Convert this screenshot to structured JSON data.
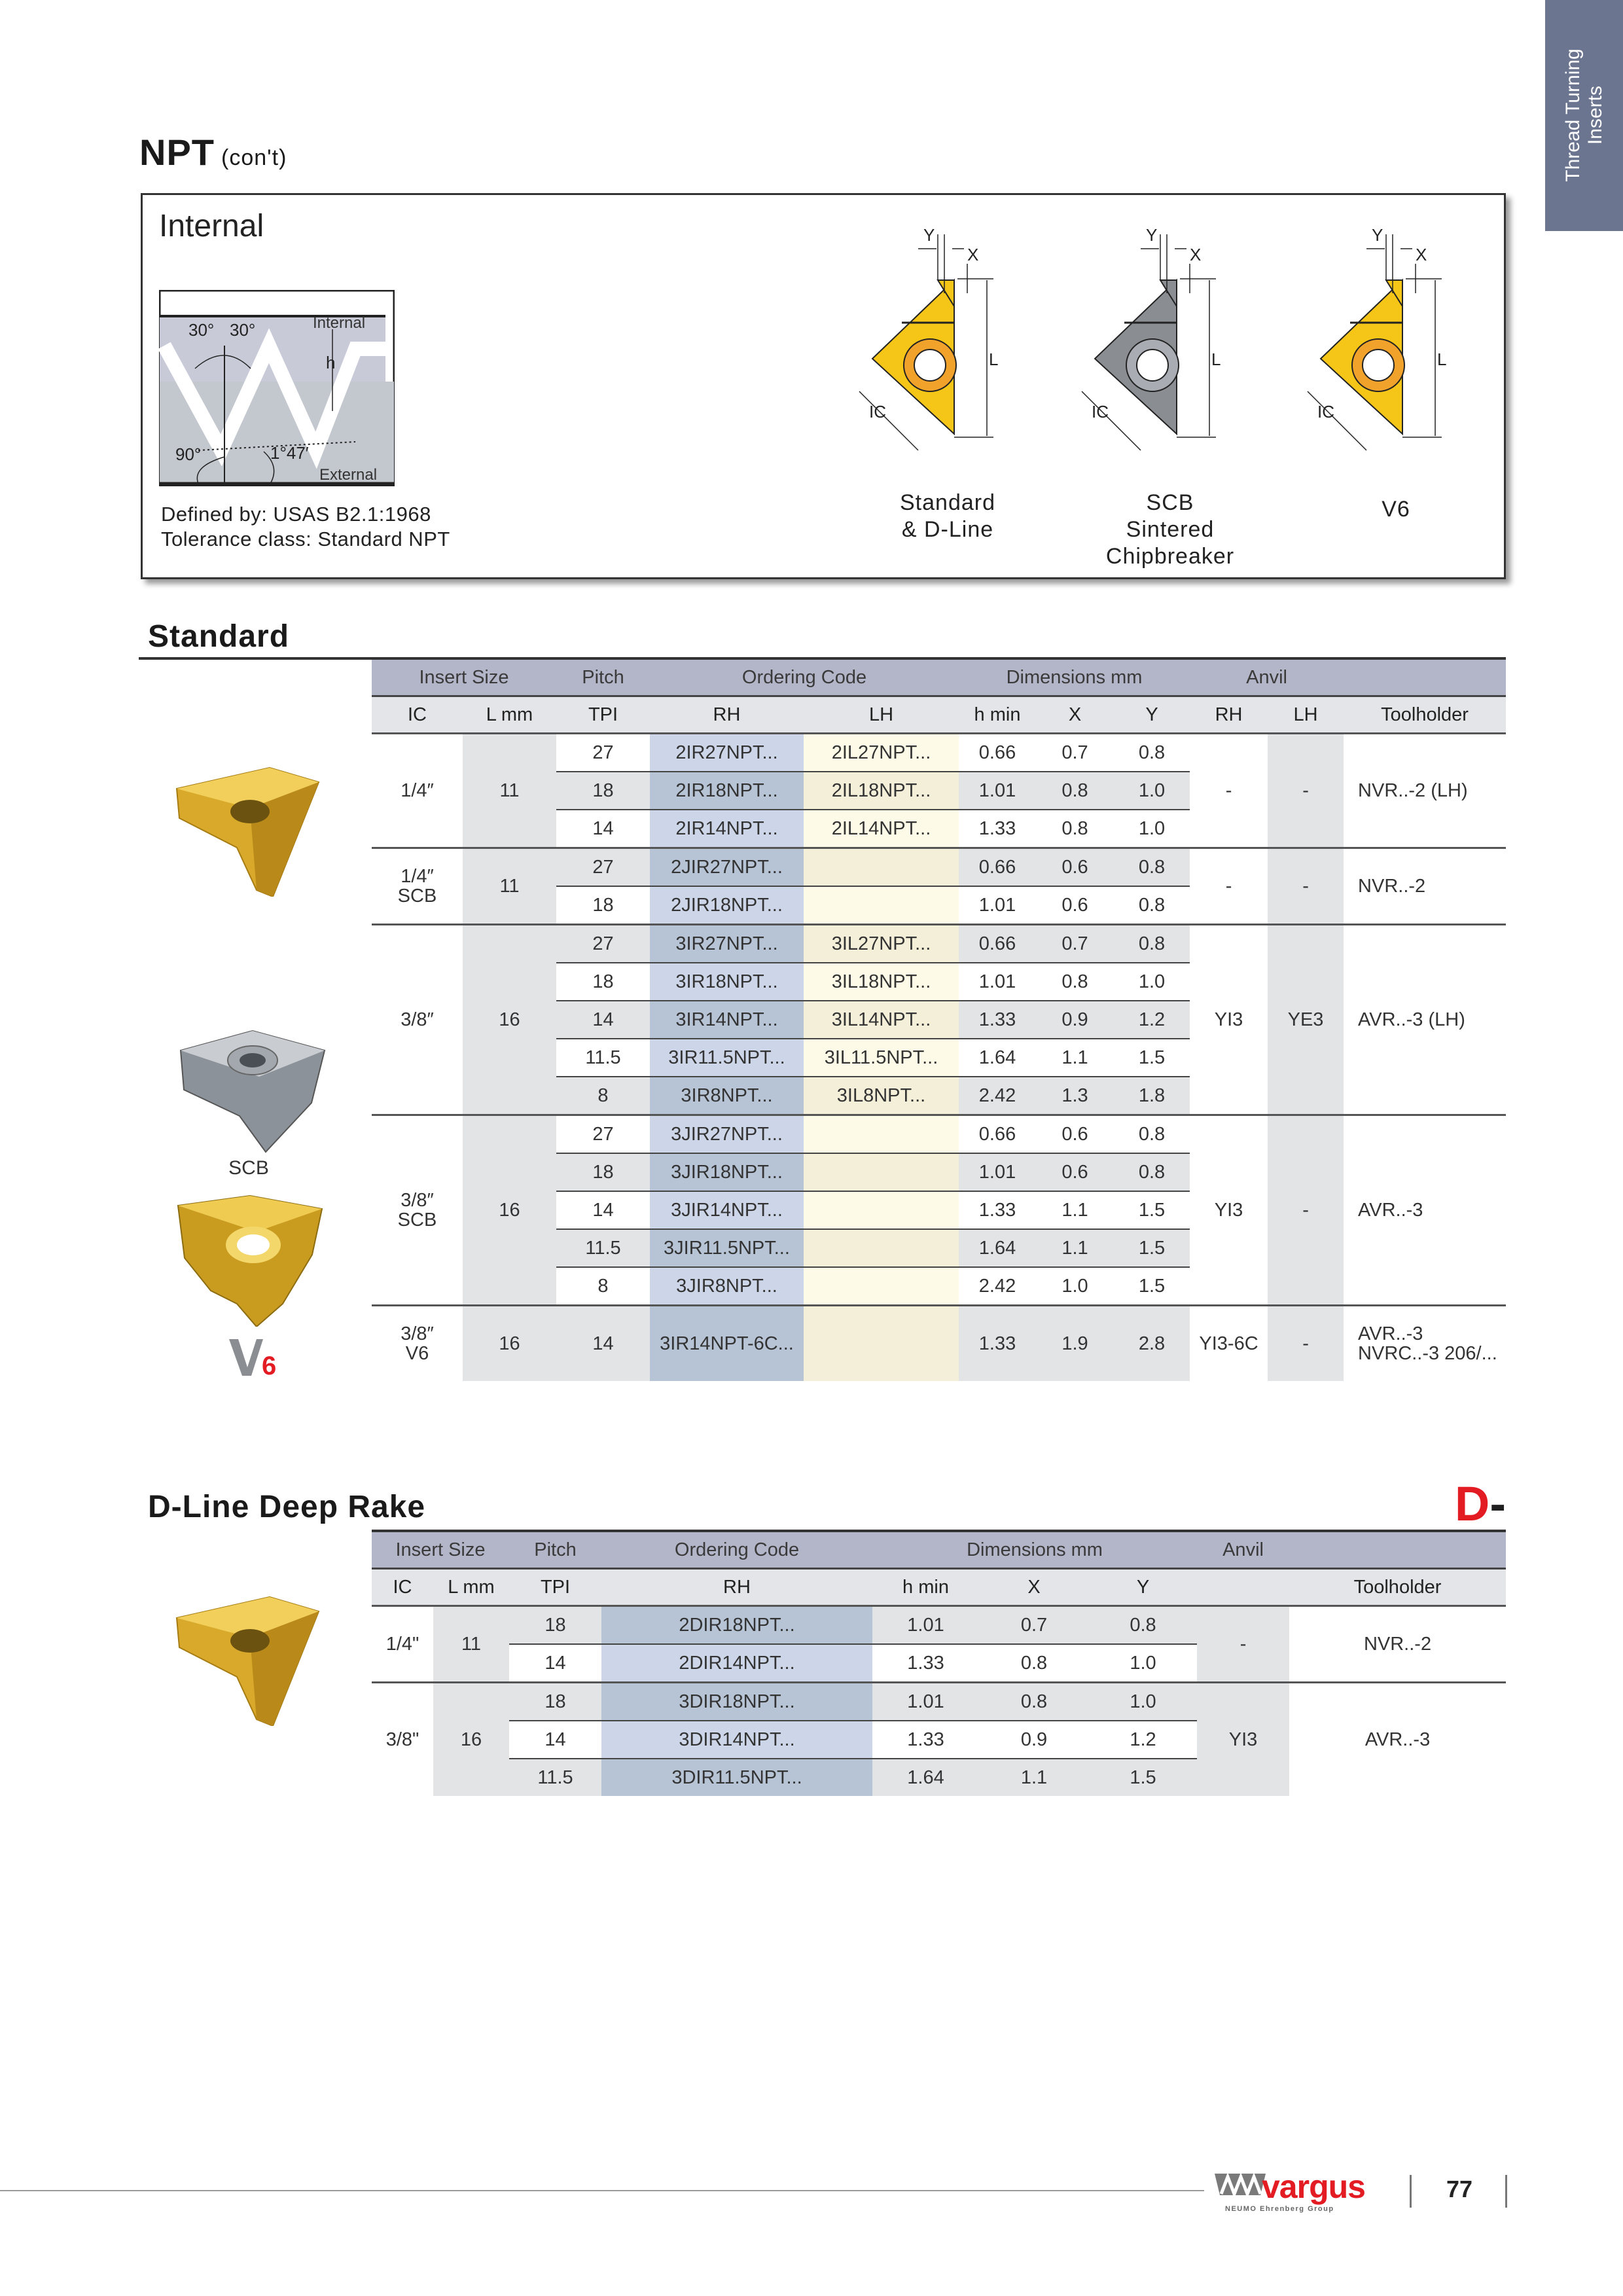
{
  "side_tab": {
    "line1": "Thread Turning",
    "line2": "Inserts",
    "color": "#6b7590"
  },
  "title": {
    "main": "NPT",
    "sub": "(con't)"
  },
  "info_box": {
    "title": "Internal",
    "thread_diagram_labels": {
      "angle_left": "30°",
      "angle_right": "30°",
      "internal": "Internal",
      "h": "h",
      "angle_90": "90°",
      "taper": "1°47′",
      "external": "External"
    },
    "defined_by": "Defined by: USAS B2.1:1968",
    "tolerance": "Tolerance class: Standard NPT",
    "inserts": [
      {
        "lines": [
          "Standard",
          "& D-Line"
        ],
        "color": "gold"
      },
      {
        "lines": [
          "SCB",
          "Sintered",
          "Chipbreaker"
        ],
        "color": "gray"
      },
      {
        "lines": [
          "V6"
        ],
        "color": "gold"
      }
    ],
    "dimension_labels": {
      "y": "Y",
      "x": "X",
      "l": "L",
      "ic": "IC"
    }
  },
  "standard": {
    "heading": "Standard",
    "group_headers": [
      "Insert Size",
      "Pitch",
      "Ordering Code",
      "Dimensions mm",
      "Anvil",
      ""
    ],
    "col_headers": [
      "IC",
      "L mm",
      "TPI",
      "RH",
      "LH",
      "h min",
      "X",
      "Y",
      "RH",
      "LH",
      "Toolholder"
    ],
    "image_labels": {
      "scb": "SCB",
      "v6_logo": "V6"
    },
    "groups": [
      {
        "ic": [
          "1/4″"
        ],
        "l": "11",
        "anvil_rh": "-",
        "anvil_lh": "-",
        "toolholder": [
          "NVR..-2 (LH)"
        ],
        "rows": [
          {
            "tpi": "27",
            "rh": "2IR27NPT...",
            "lh": "2IL27NPT...",
            "hmin": "0.66",
            "x": "0.7",
            "y": "0.8"
          },
          {
            "tpi": "18",
            "rh": "2IR18NPT...",
            "lh": "2IL18NPT...",
            "hmin": "1.01",
            "x": "0.8",
            "y": "1.0"
          },
          {
            "tpi": "14",
            "rh": "2IR14NPT...",
            "lh": "2IL14NPT...",
            "hmin": "1.33",
            "x": "0.8",
            "y": "1.0"
          }
        ]
      },
      {
        "ic": [
          "1/4″",
          "SCB"
        ],
        "l": "11",
        "anvil_rh": "-",
        "anvil_lh": "-",
        "toolholder": [
          "NVR..-2"
        ],
        "rows": [
          {
            "tpi": "27",
            "rh": "2JIR27NPT...",
            "lh": "",
            "hmin": "0.66",
            "x": "0.6",
            "y": "0.8"
          },
          {
            "tpi": "18",
            "rh": "2JIR18NPT...",
            "lh": "",
            "hmin": "1.01",
            "x": "0.6",
            "y": "0.8"
          }
        ]
      },
      {
        "ic": [
          "3/8″"
        ],
        "l": "16",
        "anvil_rh": "YI3",
        "anvil_lh": "YE3",
        "toolholder": [
          "AVR..-3 (LH)"
        ],
        "rows": [
          {
            "tpi": "27",
            "rh": "3IR27NPT...",
            "lh": "3IL27NPT...",
            "hmin": "0.66",
            "x": "0.7",
            "y": "0.8"
          },
          {
            "tpi": "18",
            "rh": "3IR18NPT...",
            "lh": "3IL18NPT...",
            "hmin": "1.01",
            "x": "0.8",
            "y": "1.0"
          },
          {
            "tpi": "14",
            "rh": "3IR14NPT...",
            "lh": "3IL14NPT...",
            "hmin": "1.33",
            "x": "0.9",
            "y": "1.2"
          },
          {
            "tpi": "11.5",
            "rh": "3IR11.5NPT...",
            "lh": "3IL11.5NPT...",
            "hmin": "1.64",
            "x": "1.1",
            "y": "1.5"
          },
          {
            "tpi": "8",
            "rh": "3IR8NPT...",
            "lh": "3IL8NPT...",
            "hmin": "2.42",
            "x": "1.3",
            "y": "1.8"
          }
        ]
      },
      {
        "ic": [
          "3/8″",
          "SCB"
        ],
        "l": "16",
        "anvil_rh": "YI3",
        "anvil_lh": "-",
        "toolholder": [
          "AVR..-3"
        ],
        "rows": [
          {
            "tpi": "27",
            "rh": "3JIR27NPT...",
            "lh": "",
            "hmin": "0.66",
            "x": "0.6",
            "y": "0.8"
          },
          {
            "tpi": "18",
            "rh": "3JIR18NPT...",
            "lh": "",
            "hmin": "1.01",
            "x": "0.6",
            "y": "0.8"
          },
          {
            "tpi": "14",
            "rh": "3JIR14NPT...",
            "lh": "",
            "hmin": "1.33",
            "x": "1.1",
            "y": "1.5"
          },
          {
            "tpi": "11.5",
            "rh": "3JIR11.5NPT...",
            "lh": "",
            "hmin": "1.64",
            "x": "1.1",
            "y": "1.5"
          },
          {
            "tpi": "8",
            "rh": "3JIR8NPT...",
            "lh": "",
            "hmin": "2.42",
            "x": "1.0",
            "y": "1.5"
          }
        ]
      },
      {
        "ic": [
          "3/8″",
          "V6"
        ],
        "l": "16",
        "anvil_rh": "YI3-6C",
        "anvil_lh": "-",
        "toolholder": [
          "AVR..-3",
          "NVRC..-3 206/..."
        ],
        "rows": [
          {
            "tpi": "14",
            "rh": "3IR14NPT-6C...",
            "lh": "",
            "hmin": "1.33",
            "x": "1.9",
            "y": "2.8"
          }
        ]
      }
    ]
  },
  "dline": {
    "heading": "D-Line Deep Rake",
    "logo": {
      "prefix": "D",
      "suffix": "-Line",
      "prefix_color": "#e31b23"
    },
    "group_headers": [
      "Insert Size",
      "Pitch",
      "Ordering Code",
      "Dimensions mm",
      "Anvil",
      ""
    ],
    "col_headers": [
      "IC",
      "L mm",
      "TPI",
      "RH",
      "h min",
      "X",
      "Y",
      "",
      "Toolholder"
    ],
    "groups": [
      {
        "ic": [
          "1/4\""
        ],
        "l": "11",
        "anvil": "-",
        "toolholder": [
          "NVR..-2"
        ],
        "rows": [
          {
            "tpi": "18",
            "rh": "2DIR18NPT...",
            "hmin": "1.01",
            "x": "0.7",
            "y": "0.8"
          },
          {
            "tpi": "14",
            "rh": "2DIR14NPT...",
            "hmin": "1.33",
            "x": "0.8",
            "y": "1.0"
          }
        ]
      },
      {
        "ic": [
          "3/8\""
        ],
        "l": "16",
        "anvil": "YI3",
        "toolholder": [
          "AVR..-3"
        ],
        "rows": [
          {
            "tpi": "18",
            "rh": "3DIR18NPT...",
            "hmin": "1.01",
            "x": "0.8",
            "y": "1.0"
          },
          {
            "tpi": "14",
            "rh": "3DIR14NPT...",
            "hmin": "1.33",
            "x": "0.9",
            "y": "1.2"
          },
          {
            "tpi": "11.5",
            "rh": "3DIR11.5NPT...",
            "hmin": "1.64",
            "x": "1.1",
            "y": "1.5"
          }
        ]
      }
    ]
  },
  "footer": {
    "brand": "vargus",
    "brand_tagline": "NEUMO Ehrenberg Group",
    "brand_color": "#e31b23",
    "page_number": "77"
  }
}
